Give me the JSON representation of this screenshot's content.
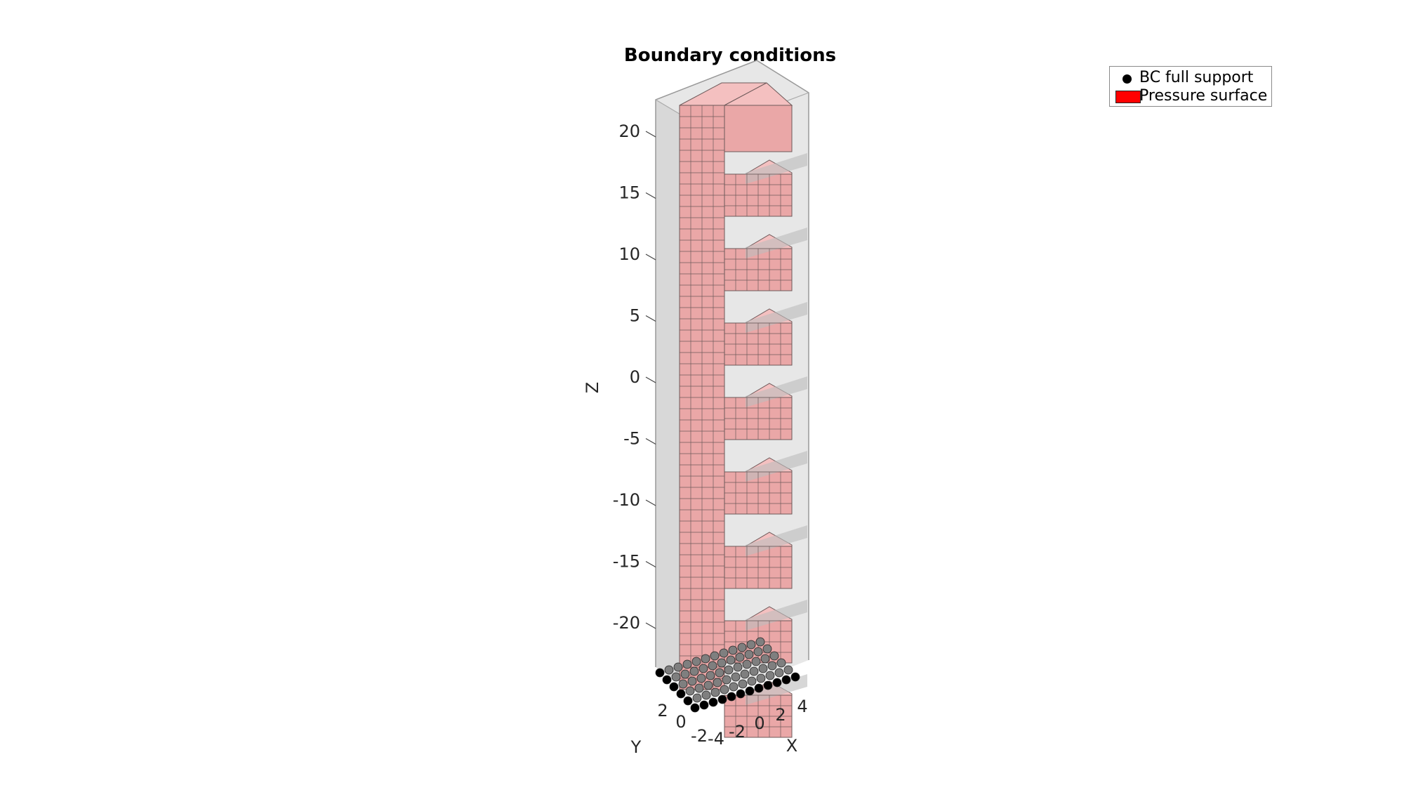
{
  "chart_data": {
    "type": "3d-voxel-mesh",
    "title": "Boundary conditions",
    "xlabel": "X",
    "ylabel": "Y",
    "zlabel": "Z",
    "x_ticks": [
      "-4",
      "-2",
      "0",
      "2",
      "4"
    ],
    "y_ticks": [
      "-2",
      "0",
      "2"
    ],
    "z_ticks": [
      "20",
      "15",
      "10",
      "5",
      "0",
      "-5",
      "-10",
      "-15",
      "-20"
    ],
    "z_tick_values": [
      20,
      15,
      10,
      5,
      0,
      -5,
      -10,
      -15,
      -20
    ],
    "zlim": [
      -24,
      24
    ],
    "legend": [
      {
        "label": "BC full support",
        "marker": "circle",
        "color": "#000000"
      },
      {
        "label": "Pressure surface",
        "marker": "patch",
        "color": "#ff0000"
      }
    ],
    "mesh_color": "#f0b2b2",
    "num_arms": 8
  },
  "colors": {
    "front_face": "#eaa7a7",
    "top_face": "#f4c0c0",
    "side_face": "#e8a1a1",
    "edge": "#6e5a5a",
    "box_face": "#d9d9d9"
  }
}
